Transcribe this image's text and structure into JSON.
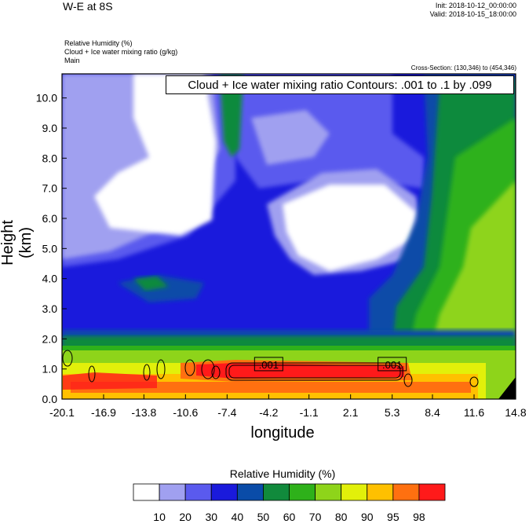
{
  "header": {
    "title": "W-E at 8S",
    "init": "Init: 2018-10-12_00:00:00",
    "valid": "Valid: 2018-10-15_18:00:00",
    "field1": "Relative Humidity   (%)",
    "field2": "Cloud + Ice water mixing ratio   (g/kg)",
    "field3": "Main",
    "cross_section": "Cross-Section: (130,346) to (454,346)",
    "contour_note": "Cloud + Ice water mixing ratio Contours: .001 to .1 by .099"
  },
  "chart_data": {
    "type": "heatmap",
    "xlabel": "longitude",
    "ylabel": "Height (km)",
    "x_ticks": [
      "-20.1",
      "-16.9",
      "-13.8",
      "-10.6",
      "-7.4",
      "-4.2",
      "-1.1",
      "2.1",
      "5.3",
      "8.4",
      "11.6",
      "14.8"
    ],
    "y_ticks": [
      "0.0",
      "1.0",
      "2.0",
      "3.0",
      "4.0",
      "5.0",
      "6.0",
      "7.0",
      "8.0",
      "9.0",
      "10.0"
    ],
    "xlim": [
      -20.1,
      14.8
    ],
    "ylim": [
      0.0,
      10.8
    ],
    "contour_labels": [
      {
        "text": ".001",
        "x": -4.2,
        "y": 1.15
      },
      {
        "text": ".001",
        "x": 5.3,
        "y": 1.15
      }
    ],
    "colorbar": {
      "title": "Relative Humidity  (%)",
      "levels": [
        "10",
        "20",
        "30",
        "40",
        "50",
        "60",
        "70",
        "80",
        "90",
        "95",
        "98"
      ],
      "colors": [
        "#ffffff",
        "#a0a0f0",
        "#5a5aee",
        "#1a1adc",
        "#0a4ca8",
        "#118a3c",
        "#2eb11a",
        "#8ed41a",
        "#e2f00a",
        "#ffc000",
        "#ff7010",
        "#ff1a1a"
      ]
    }
  }
}
